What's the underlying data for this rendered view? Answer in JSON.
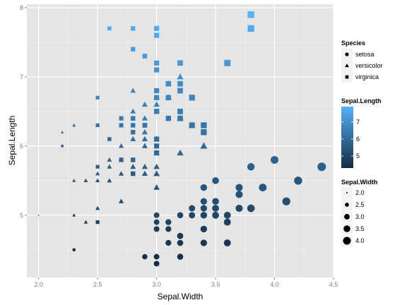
{
  "chart_data": {
    "type": "scatter",
    "xlabel": "Sepal.Width",
    "ylabel": "Sepal.Length",
    "xlim": [
      1.9,
      4.5
    ],
    "ylim": [
      4.1,
      8.05
    ],
    "x_ticks": [
      2.0,
      2.5,
      3.0,
      3.5,
      4.0,
      4.5
    ],
    "x_tick_labels": [
      "2.0",
      "2.5",
      "3.0",
      "3.5",
      "4.0",
      "4.5"
    ],
    "y_ticks": [
      5,
      6,
      7,
      8
    ],
    "y_tick_labels": [
      "5",
      "6",
      "7",
      "8"
    ],
    "grid": true,
    "panel_background": "#e5e5e5",
    "grid_color": "#ffffff",
    "color_mapping": {
      "variable": "Sepal.Length",
      "low": "#132b43",
      "high": "#56b1f7",
      "range": [
        4.3,
        7.9
      ]
    },
    "size_mapping": {
      "variable": "Sepal.Width",
      "range": [
        2.0,
        4.4
      ]
    },
    "legends": {
      "shape": {
        "title": "Species",
        "entries": [
          {
            "label": "setosa",
            "shape": "circle"
          },
          {
            "label": "versicolor",
            "shape": "triangle"
          },
          {
            "label": "virginica",
            "shape": "square"
          }
        ]
      },
      "color": {
        "title": "Sepal.Length",
        "tick_values": [
          5,
          6,
          7
        ],
        "tick_labels": [
          "5",
          "6",
          "7"
        ]
      },
      "size": {
        "title": "Sepal.Width",
        "entries": [
          {
            "label": "2.0",
            "value": 2.0
          },
          {
            "label": "2.5",
            "value": 2.5
          },
          {
            "label": "3.0",
            "value": 3.0
          },
          {
            "label": "3.5",
            "value": 3.5
          },
          {
            "label": "4.0",
            "value": 4.0
          }
        ]
      }
    },
    "series": [
      {
        "name": "setosa",
        "shape": "circle",
        "points": [
          [
            3.5,
            5.1
          ],
          [
            3.0,
            4.9
          ],
          [
            3.2,
            4.7
          ],
          [
            3.1,
            4.6
          ],
          [
            3.6,
            5.0
          ],
          [
            3.9,
            5.4
          ],
          [
            3.4,
            4.6
          ],
          [
            3.4,
            5.0
          ],
          [
            2.9,
            4.4
          ],
          [
            3.1,
            4.9
          ],
          [
            3.7,
            5.4
          ],
          [
            3.4,
            4.8
          ],
          [
            3.0,
            4.8
          ],
          [
            3.0,
            4.3
          ],
          [
            4.0,
            5.8
          ],
          [
            4.4,
            5.7
          ],
          [
            3.9,
            5.4
          ],
          [
            3.5,
            5.1
          ],
          [
            3.8,
            5.7
          ],
          [
            3.8,
            5.1
          ],
          [
            3.4,
            5.4
          ],
          [
            3.7,
            5.1
          ],
          [
            3.6,
            4.6
          ],
          [
            3.3,
            5.1
          ],
          [
            3.4,
            4.8
          ],
          [
            3.0,
            5.0
          ],
          [
            3.4,
            5.0
          ],
          [
            3.5,
            5.2
          ],
          [
            3.4,
            5.2
          ],
          [
            3.2,
            4.7
          ],
          [
            3.1,
            4.8
          ],
          [
            3.4,
            5.4
          ],
          [
            4.1,
            5.2
          ],
          [
            4.2,
            5.5
          ],
          [
            3.1,
            4.9
          ],
          [
            3.2,
            5.0
          ],
          [
            3.5,
            5.5
          ],
          [
            3.6,
            4.9
          ],
          [
            3.0,
            4.4
          ],
          [
            3.4,
            5.1
          ],
          [
            3.5,
            5.0
          ],
          [
            2.3,
            4.5
          ],
          [
            3.2,
            4.4
          ],
          [
            3.5,
            5.0
          ],
          [
            3.8,
            5.1
          ],
          [
            3.0,
            4.8
          ],
          [
            3.8,
            5.1
          ],
          [
            3.2,
            4.6
          ],
          [
            3.7,
            5.3
          ],
          [
            3.3,
            5.0
          ]
        ]
      },
      {
        "name": "versicolor",
        "shape": "triangle",
        "points": [
          [
            3.2,
            7.0
          ],
          [
            3.2,
            6.4
          ],
          [
            3.1,
            6.9
          ],
          [
            2.3,
            5.5
          ],
          [
            2.8,
            6.5
          ],
          [
            2.8,
            5.7
          ],
          [
            3.3,
            6.3
          ],
          [
            2.4,
            4.9
          ],
          [
            2.9,
            6.6
          ],
          [
            2.7,
            5.2
          ],
          [
            2.0,
            5.0
          ],
          [
            3.0,
            5.9
          ],
          [
            2.2,
            6.0
          ],
          [
            2.9,
            6.1
          ],
          [
            2.9,
            5.6
          ],
          [
            3.1,
            6.7
          ],
          [
            3.0,
            5.6
          ],
          [
            2.7,
            5.8
          ],
          [
            2.2,
            6.2
          ],
          [
            2.5,
            5.6
          ],
          [
            3.2,
            5.9
          ],
          [
            2.8,
            6.1
          ],
          [
            2.5,
            6.3
          ],
          [
            2.8,
            6.1
          ],
          [
            2.9,
            6.4
          ],
          [
            3.0,
            6.6
          ],
          [
            2.8,
            6.8
          ],
          [
            3.0,
            6.7
          ],
          [
            2.9,
            6.0
          ],
          [
            2.6,
            5.7
          ],
          [
            2.4,
            5.5
          ],
          [
            2.4,
            5.5
          ],
          [
            2.7,
            5.8
          ],
          [
            2.7,
            6.0
          ],
          [
            3.0,
            5.4
          ],
          [
            3.4,
            6.0
          ],
          [
            3.1,
            6.7
          ],
          [
            2.3,
            6.3
          ],
          [
            3.0,
            5.6
          ],
          [
            2.5,
            5.5
          ],
          [
            2.6,
            5.5
          ],
          [
            3.0,
            6.1
          ],
          [
            2.6,
            5.8
          ],
          [
            2.3,
            5.0
          ],
          [
            2.7,
            5.6
          ],
          [
            3.0,
            5.7
          ],
          [
            2.9,
            5.7
          ],
          [
            2.9,
            6.2
          ],
          [
            2.5,
            5.1
          ],
          [
            2.8,
            5.7
          ]
        ]
      },
      {
        "name": "virginica",
        "shape": "square",
        "points": [
          [
            3.3,
            6.3
          ],
          [
            2.7,
            5.8
          ],
          [
            3.0,
            7.1
          ],
          [
            2.9,
            6.3
          ],
          [
            3.0,
            6.5
          ],
          [
            3.0,
            7.6
          ],
          [
            2.5,
            4.9
          ],
          [
            2.9,
            7.3
          ],
          [
            2.5,
            6.7
          ],
          [
            3.6,
            7.2
          ],
          [
            3.2,
            6.5
          ],
          [
            2.7,
            6.4
          ],
          [
            3.0,
            6.8
          ],
          [
            2.5,
            5.7
          ],
          [
            2.8,
            5.8
          ],
          [
            3.2,
            6.4
          ],
          [
            3.0,
            6.5
          ],
          [
            3.8,
            7.7
          ],
          [
            2.6,
            7.7
          ],
          [
            2.2,
            6.0
          ],
          [
            3.2,
            6.9
          ],
          [
            2.8,
            5.6
          ],
          [
            2.8,
            7.7
          ],
          [
            2.7,
            6.3
          ],
          [
            3.3,
            6.7
          ],
          [
            3.2,
            7.2
          ],
          [
            2.8,
            6.2
          ],
          [
            3.0,
            6.1
          ],
          [
            2.8,
            6.4
          ],
          [
            3.0,
            7.2
          ],
          [
            2.8,
            7.4
          ],
          [
            3.8,
            7.9
          ],
          [
            2.8,
            6.4
          ],
          [
            2.8,
            6.3
          ],
          [
            2.6,
            6.1
          ],
          [
            3.0,
            7.7
          ],
          [
            3.4,
            6.3
          ],
          [
            3.1,
            6.4
          ],
          [
            3.0,
            6.0
          ],
          [
            3.1,
            6.9
          ],
          [
            3.1,
            6.7
          ],
          [
            3.1,
            6.9
          ],
          [
            2.7,
            5.8
          ],
          [
            3.2,
            6.8
          ],
          [
            3.3,
            6.7
          ],
          [
            3.0,
            6.7
          ],
          [
            2.5,
            6.3
          ],
          [
            3.0,
            6.5
          ],
          [
            3.4,
            6.2
          ],
          [
            3.0,
            5.9
          ]
        ]
      }
    ]
  }
}
